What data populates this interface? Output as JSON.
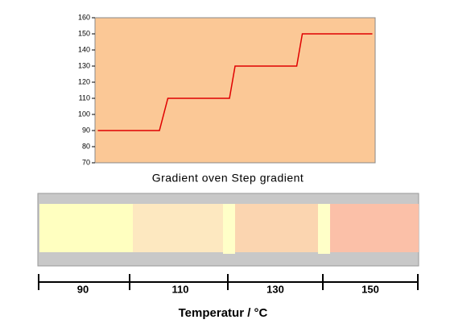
{
  "chart_data": {
    "type": "line",
    "x": [
      1,
      23,
      26,
      48,
      50,
      72,
      74,
      99
    ],
    "xlim": [
      0,
      100
    ],
    "series": [
      {
        "color": "#e00000",
        "values": [
          90,
          90,
          110,
          110,
          130,
          130,
          150,
          150
        ]
      }
    ],
    "ylim": [
      70,
      160
    ],
    "yticks": [
      70,
      80,
      90,
      100,
      110,
      120,
      130,
      140,
      150,
      160
    ],
    "background": "#fbc896"
  },
  "caption": "Gradient oven Step gradient",
  "oven": {
    "zones": [
      "90",
      "110",
      "130",
      "150"
    ],
    "axis_label": "Temperatur / °C"
  }
}
